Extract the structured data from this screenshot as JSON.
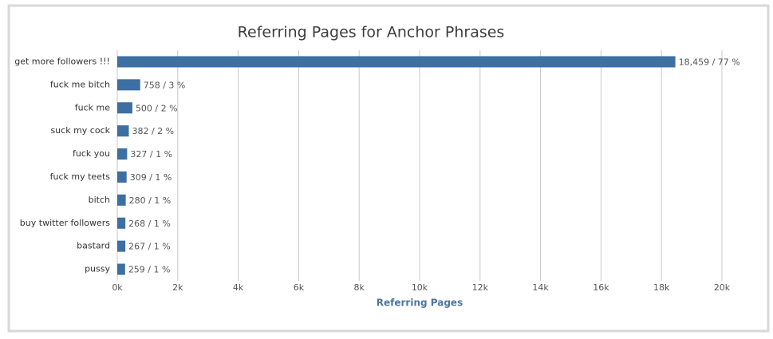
{
  "chart_data": {
    "type": "bar",
    "orientation": "horizontal",
    "title": "Referring Pages for Anchor Phrases",
    "x_label": "Referring Pages",
    "categories": [
      "get more followers !!!",
      "fuck me bitch",
      "fuck me",
      "suck my cock",
      "fuck you",
      "fuck my teets",
      "bitch",
      "buy twitter followers",
      "bastard",
      "pussy"
    ],
    "values": [
      18459,
      758,
      500,
      382,
      327,
      309,
      280,
      268,
      267,
      259
    ],
    "value_labels": [
      "18,459 / 77 %",
      "758 / 3 %",
      "500 / 2 %",
      "382 / 2 %",
      "327 / 1 %",
      "309 / 1 %",
      "280 / 1 %",
      "268 / 1 %",
      "267 / 1 %",
      "259 / 1 %"
    ],
    "color": "#3d6fa3",
    "xlim": [
      0,
      20000
    ],
    "xticks": [
      {
        "value": 0,
        "label": "0k"
      },
      {
        "value": 2000,
        "label": "2k"
      },
      {
        "value": 4000,
        "label": "4k"
      },
      {
        "value": 6000,
        "label": "6k"
      },
      {
        "value": 8000,
        "label": "8k"
      },
      {
        "value": 10000,
        "label": "10k"
      },
      {
        "value": 12000,
        "label": "12k"
      },
      {
        "value": 14000,
        "label": "14k"
      },
      {
        "value": 16000,
        "label": "16k"
      },
      {
        "value": 18000,
        "label": "18k"
      },
      {
        "value": 20000,
        "label": "20k"
      }
    ],
    "grid": true
  }
}
